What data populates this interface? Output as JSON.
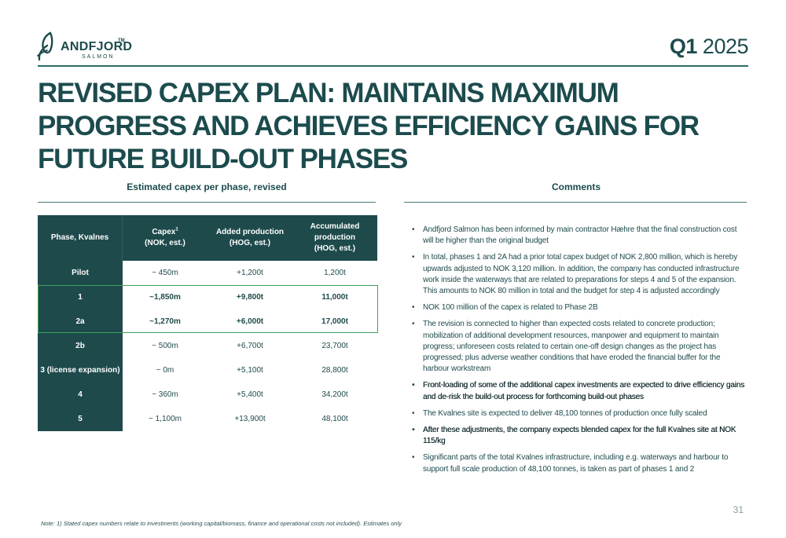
{
  "logo": {
    "name": "ANDFJORD",
    "tm": "TM",
    "sub": "SALMON"
  },
  "quarter": {
    "bold": "Q1",
    "year": "2025"
  },
  "title": {
    "p1": "REVISED",
    "p2": " CAPEX PLAN: MAINTAINS ",
    "p3": "MAXIMUM PROGRESS",
    "p4": " AND ACHIEVES ",
    "p5": "EFFICIENCY GAINS",
    "p6": " FOR FUTURE BUILD-OUT PHASES"
  },
  "left_section": {
    "heading": "Estimated capex per phase, revised"
  },
  "right_section": {
    "heading": "Comments"
  },
  "table": {
    "headers": {
      "phase": "Phase, Kvalnes",
      "capex": "Capex",
      "capex_sup": "1",
      "capex_unit": "(NOK, est.)",
      "added": "Added production",
      "added_unit": "(HOG, est.)",
      "accum": "Accumulated production",
      "accum_unit": "(HOG, est.)"
    },
    "rows": [
      {
        "phase": "Pilot",
        "capex": "~ 450m",
        "added": "+1,200t",
        "accum": "1,200t"
      },
      {
        "phase": "1",
        "capex": "~1,850m",
        "added": "+9,800t",
        "accum": "11,000t"
      },
      {
        "phase": "2a",
        "capex": "~1,270m",
        "added": "+6,000t",
        "accum": "17,000t"
      },
      {
        "phase": "2b",
        "capex": "~ 500m",
        "added": "+6,700t",
        "accum": "23,700t"
      },
      {
        "phase": "3 (license expansion)",
        "capex": "~ 0m",
        "added": "+5,100t",
        "accum": "28,800t"
      },
      {
        "phase": "4",
        "capex": "~ 360m",
        "added": "+5,400t",
        "accum": "34,200t"
      },
      {
        "phase": "5",
        "capex": "~ 1,100m",
        "added": "+13,900t",
        "accum": "48,100t"
      }
    ]
  },
  "comments": [
    "Andfjord Salmon has been informed by main contractor Hæhre that the final construction cost will be higher than the original budget",
    "In total, phases 1 and 2A had a prior total capex budget of NOK 2,800 million, which is hereby upwards adjusted to NOK 3,120 million. In addition, the company has conducted infrastructure work inside the waterways that are related to preparations for steps 4 and 5 of the expansion. This amounts to NOK 80 million in total and the budget for step 4 is adjusted accordingly",
    "NOK 100 million of the capex is related to Phase 2B",
    "The revision is connected to higher than expected costs related to concrete production; mobilization of additional development resources, manpower and equipment to maintain progress; unforeseen costs related to certain one-off design changes as the project has progressed; plus adverse weather conditions that have eroded the financial buffer for the harbour workstream",
    "Front-loading of some of the additional capex investments are expected to drive efficiency gains and de-risk the build-out process for forthcoming build-out phases",
    "The Kvalnes site is expected to deliver 48,100 tonnes of production once fully scaled",
    "After these adjustments, the company expects blended capex for the full Kvalnes site at NOK 115/kg",
    "Significant parts of the total Kvalnes infrastructure, including e.g. waterways and harbour to support full scale production of 48,100 tonnes, is taken as part of phases 1 and 2"
  ],
  "page_number": "31",
  "note": "Note: 1) Stated capex numbers relate to investments (working capital/biomass, finance and operational costs not included). Estimates only",
  "colors": {
    "brand": "#1e4a4c",
    "highlight": "#3fa15a",
    "rule": "#2d6b6a"
  }
}
